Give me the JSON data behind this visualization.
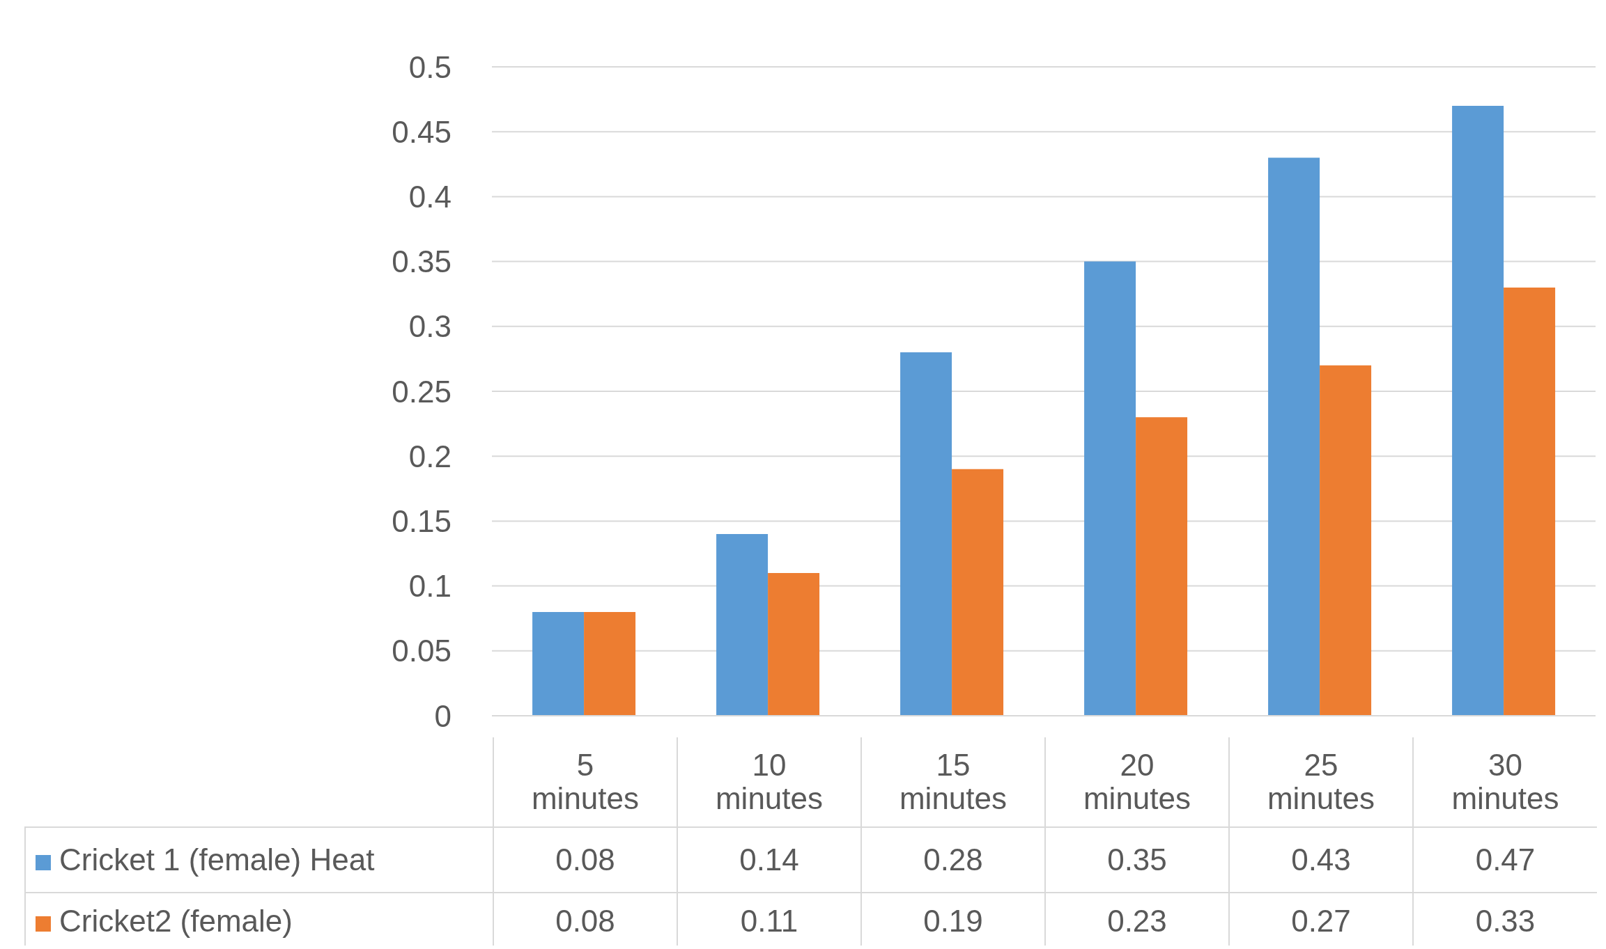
{
  "chart_data": {
    "type": "bar",
    "categories": [
      "5 minutes",
      "10 minutes",
      "15 minutes",
      "20 minutes",
      "25 minutes",
      "30 minutes"
    ],
    "series": [
      {
        "name": "Cricket 1 (female) Heat",
        "color": "#5b9bd5",
        "values": [
          0.08,
          0.14,
          0.28,
          0.35,
          0.43,
          0.47
        ]
      },
      {
        "name": "Cricket2 (female)",
        "color": "#ed7d31",
        "values": [
          0.08,
          0.11,
          0.19,
          0.23,
          0.27,
          0.33
        ]
      }
    ],
    "ylim": [
      0,
      0.5
    ],
    "yticks": [
      0,
      0.05,
      0.1,
      0.15,
      0.2,
      0.25,
      0.3,
      0.35,
      0.4,
      0.45,
      0.5
    ],
    "grid": "y",
    "data_labels": true,
    "legend": "bottom left"
  }
}
